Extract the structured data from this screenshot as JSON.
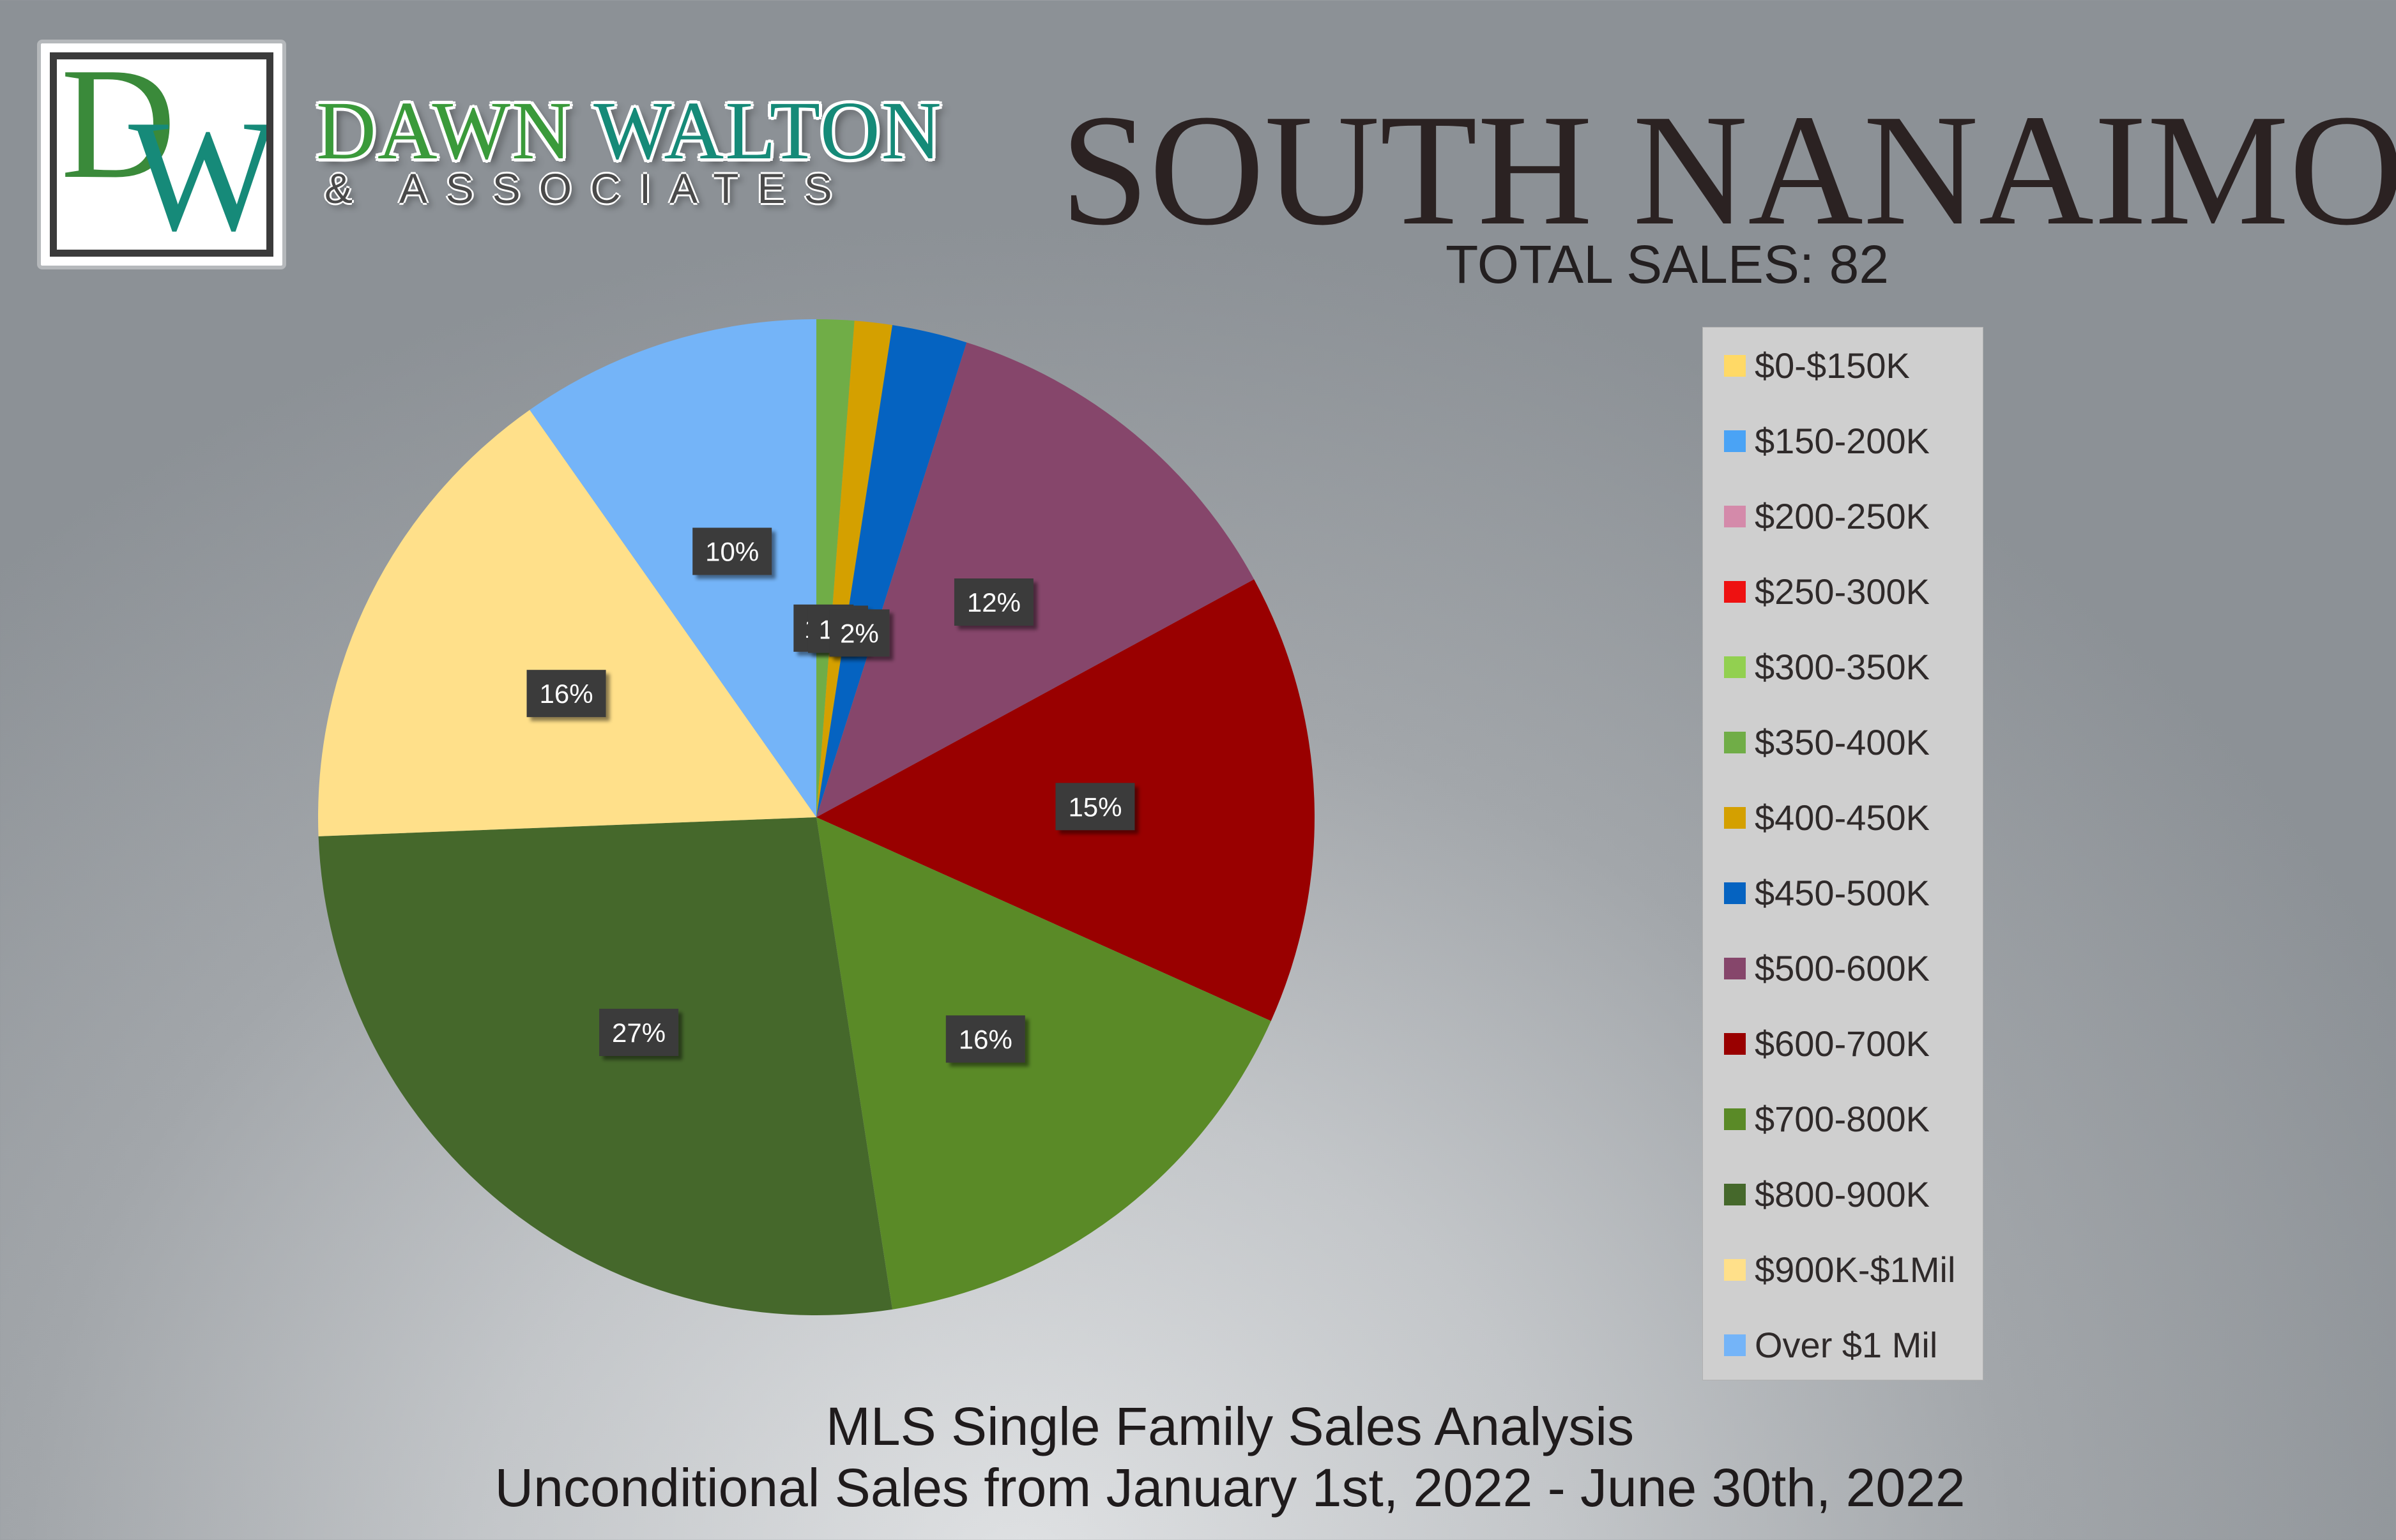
{
  "brand": {
    "logo_d": "D",
    "logo_w": "W",
    "name_word1": "DAWN",
    "name_word2": "WALTON",
    "sub": "& ASSOCIATES"
  },
  "header": {
    "title": "South Nanaimo",
    "total_sales": "TOTAL SALES: 82"
  },
  "footer": {
    "line1": "MLS Single Family Sales Analysis",
    "line2": "Unconditional Sales from January 1st, 2022 - June 30th, 2022"
  },
  "colors": {
    "label_box": "#3a3a3a",
    "label_text": "#ffffff"
  },
  "chart_data": {
    "type": "pie",
    "total": 82,
    "legend_position": "right",
    "start_angle_deg": 0,
    "direction": "clockwise",
    "slices": [
      {
        "name": "$0-$150K",
        "value": 0,
        "label": "",
        "color": "#ffd966"
      },
      {
        "name": "$150-200K",
        "value": 0,
        "label": "",
        "color": "#4aa3f5"
      },
      {
        "name": "$200-250K",
        "value": 0,
        "label": "",
        "color": "#d48aaa"
      },
      {
        "name": "$250-300K",
        "value": 0,
        "label": "",
        "color": "#ee1111"
      },
      {
        "name": "$300-350K",
        "value": 0,
        "label": "",
        "color": "#92d050"
      },
      {
        "name": "$350-400K",
        "value": 1,
        "label": "1%",
        "color": "#70ad47"
      },
      {
        "name": "$400-450K",
        "value": 1,
        "label": "1%",
        "color": "#d4a000"
      },
      {
        "name": "$450-500K",
        "value": 2,
        "label": "2%",
        "color": "#0563c1"
      },
      {
        "name": "$500-600K",
        "value": 10,
        "label": "12%",
        "color": "#86466b"
      },
      {
        "name": "$600-700K",
        "value": 12,
        "label": "15%",
        "color": "#990000"
      },
      {
        "name": "$700-800K",
        "value": 13,
        "label": "16%",
        "color": "#5a8a27"
      },
      {
        "name": "$800-900K",
        "value": 22,
        "label": "27%",
        "color": "#45682b"
      },
      {
        "name": "$900K-$1Mil",
        "value": 13,
        "label": "16%",
        "color": "#ffe08a"
      },
      {
        "name": "Over $1 Mil",
        "value": 8,
        "label": "10%",
        "color": "#74b4f8"
      }
    ]
  }
}
